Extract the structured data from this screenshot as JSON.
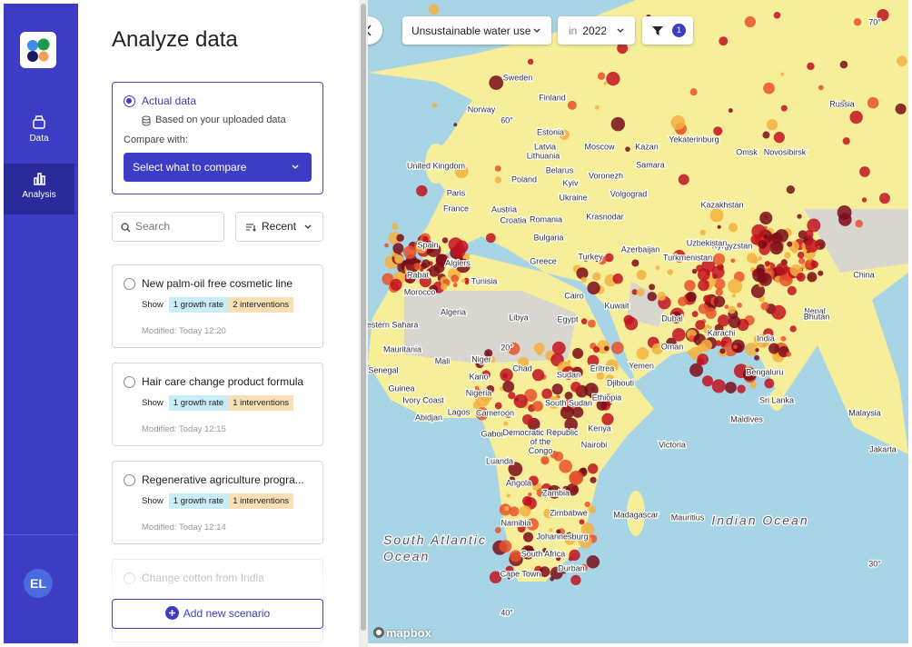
{
  "sidebar": {
    "nav": [
      {
        "label": "Data"
      },
      {
        "label": "Analysis"
      }
    ],
    "avatar": "EL"
  },
  "panel": {
    "title": "Analyze data",
    "actual": {
      "label": "Actual data",
      "source": "Based on your uploaded data",
      "compare_label": "Compare with:",
      "select": "Select what to compare"
    },
    "search_placeholder": "Search",
    "sort": "Recent",
    "scenarios": [
      {
        "title": "New palm-oil free cosmetic line",
        "show": "Show",
        "chips": [
          "1 growth rate",
          "2 interventions"
        ],
        "modified": "Modified: Today 12:20"
      },
      {
        "title": "Hair care change product formula",
        "show": "Show",
        "chips": [
          "1 growth rate",
          "1 interventions"
        ],
        "modified": "Modified: Today 12:15"
      },
      {
        "title": "Regenerative agriculture progra...",
        "show": "Show",
        "chips": [
          "1 growth rate",
          "1 interventions"
        ],
        "modified": "Modified: Today 12:14"
      },
      {
        "title": "Change cotton from India"
      }
    ],
    "add_button": "Add new scenario"
  },
  "map": {
    "indicator": "Unsustainable water use",
    "year_prefix": "in",
    "year": "2022",
    "filter_count": "1",
    "attribution": "mapbox",
    "labels": [
      "Sweden",
      "Finland",
      "Norway",
      "Estonia",
      "Moscow",
      "Kazan",
      "Yekaterinburg",
      "Russia",
      "Omsk",
      "Novosibirsk",
      "Latvia",
      "Lithuania",
      "United Kingdom",
      "Belarus",
      "Samara",
      "Voronezh",
      "Poland",
      "Kyiv",
      "Paris",
      "Ukraine",
      "Volgograd",
      "France",
      "Austria",
      "Krasnodar",
      "Kazakhstan",
      "Croatia",
      "Romania",
      "Bulgaria",
      "Spain",
      "Kyrgyzstan",
      "Uzbekistan",
      "Turkey",
      "Azerbaijan",
      "Turkmenistan",
      "Algiers",
      "Greece",
      "Rabat",
      "Tunisia",
      "Morocco",
      "Cairo",
      "Kuwait",
      "Algeria",
      "Libya",
      "Egypt",
      "Dubai",
      "China",
      "Nepal",
      "Bhutan",
      "Western Sahara",
      "Karachi",
      "India",
      "Mauritania",
      "Oman",
      "Yemen",
      "Bengaluru",
      "Senegal",
      "Mali",
      "Niger",
      "Chad",
      "Sudan",
      "Eritrea",
      "Djibouti",
      "Guinea",
      "Kano",
      "Nigeria",
      "Ivory Coast",
      "Ethiopia",
      "South Sudan",
      "Sri Lanka",
      "Abidjan",
      "Lagos",
      "Cameroon",
      "Maldives",
      "Kenya",
      "Gabon",
      "Democratic Republic of the Congo",
      "Nairobi",
      "Victoria",
      "Luanda",
      "Angola",
      "Zambia",
      "Zimbabwe",
      "Madagascar",
      "Mauritius",
      "Namibia",
      "Johannesburg",
      "South Africa",
      "Durban",
      "Cape Town",
      "Malaysia",
      "Jakarta",
      "Indian Ocean",
      "South Atlantic Ocean",
      "70°",
      "60°",
      "20°",
      "30°",
      "40°"
    ]
  }
}
